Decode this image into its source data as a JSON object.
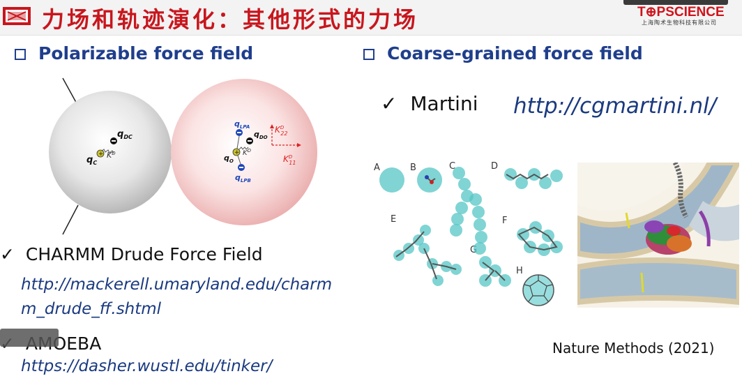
{
  "header": {
    "title": "力场和轨迹演化：其他形式的力场",
    "brand_name": "T⊕PSCIENCE",
    "brand_sub": "上海陶术生物科技有限公司"
  },
  "left": {
    "heading": "Polarizable force field",
    "figure": {
      "labels": {
        "qdc": "q",
        "qdc_sub": "DC",
        "qc": "q",
        "qc_sub": "C",
        "kd1": "K",
        "kd1_sup": "D",
        "qlpa": "q",
        "qlpa_sub": "LPA",
        "qdo": "q",
        "qdo_sub": "DO",
        "k22": "K",
        "k22_sub": "22",
        "k22_sup": "D",
        "qo": "q",
        "qo_sub": "O",
        "kd2": "K",
        "kd2_sup": "D",
        "k11": "K",
        "k11_sub": "11",
        "k11_sup": "D",
        "qlpb": "q",
        "qlpb_sub": "LPB"
      }
    },
    "items": [
      {
        "check": "✓",
        "label": "CHARMM Drude Force Field",
        "link_line1": "http://mackerell.umaryland.edu/charm",
        "link_line2": "m_drude_ff.shtml"
      },
      {
        "check": "✓",
        "label": "AMOEBA",
        "link_line1": "https://dasher.wustl.edu/tinker/"
      }
    ]
  },
  "right": {
    "heading": "Coarse-grained force field",
    "item": {
      "check": "✓",
      "label": "Martini",
      "link": "http://cgmartini.nl/"
    },
    "figure_letters": [
      "A",
      "B",
      "C",
      "D",
      "E",
      "F",
      "G",
      "H"
    ],
    "citation": "Nature Methods (2021)"
  },
  "colors": {
    "title_red": "#c8161d",
    "heading_blue": "#1f3e8c",
    "link_blue": "#1a3a80",
    "cg_bead": "#4fc4c4"
  }
}
